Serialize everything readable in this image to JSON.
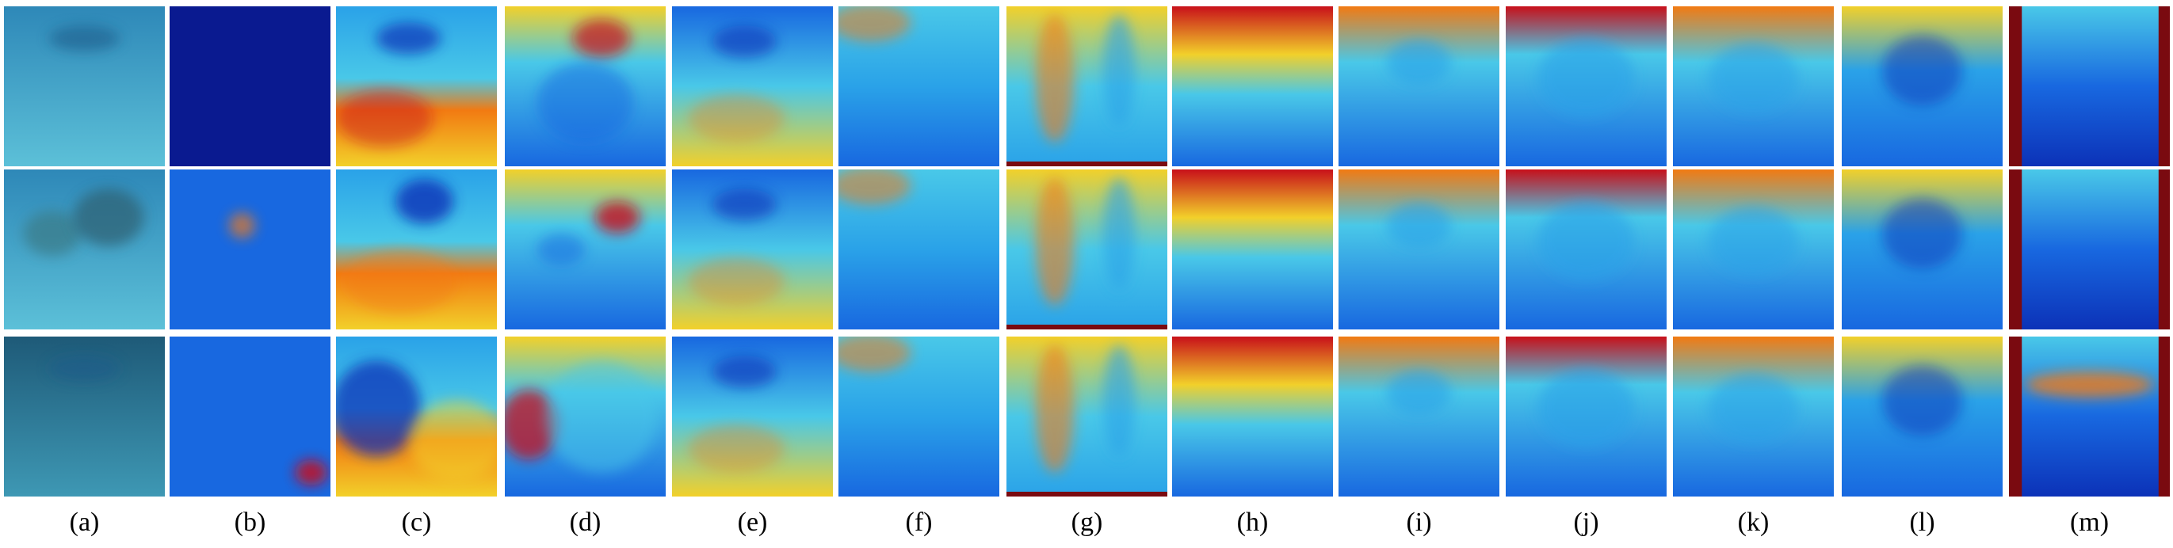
{
  "figure": {
    "panel_labels": [
      "(a)",
      "(b)",
      "(c)",
      "(d)",
      "(e)",
      "(f)",
      "(g)",
      "(h)",
      "(i)",
      "(j)",
      "(k)",
      "(l)",
      "(m)"
    ],
    "rows": 3,
    "columns": 13
  }
}
